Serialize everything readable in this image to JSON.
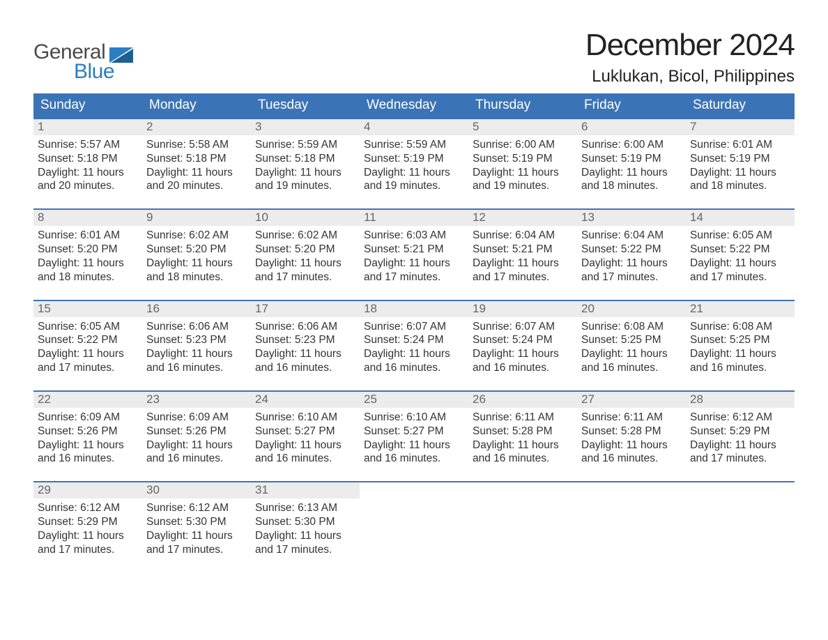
{
  "logo": {
    "line1": "General",
    "line2": "Blue"
  },
  "title": "December 2024",
  "location": "Luklukan, Bicol, Philippines",
  "colors": {
    "header_blue": "#3b74b6",
    "daynum_bg": "#ececec",
    "daynum_color": "#666666",
    "body_text": "#333333",
    "background": "#ffffff",
    "logo_gray": "#4a4a4a",
    "logo_blue": "#2a7ec2"
  },
  "typography": {
    "title_fontsize": 44,
    "location_fontsize": 24,
    "dow_fontsize": 19,
    "daynum_fontsize": 17,
    "body_fontsize": 15.5
  },
  "calendar": {
    "type": "table",
    "day_names": [
      "Sunday",
      "Monday",
      "Tuesday",
      "Wednesday",
      "Thursday",
      "Friday",
      "Saturday"
    ],
    "labels": {
      "sunrise": "Sunrise:",
      "sunset": "Sunset:",
      "daylight": "Daylight:"
    },
    "weeks": [
      [
        {
          "n": "1",
          "sunrise": "5:57 AM",
          "sunset": "5:18 PM",
          "daylight": "11 hours and 20 minutes."
        },
        {
          "n": "2",
          "sunrise": "5:58 AM",
          "sunset": "5:18 PM",
          "daylight": "11 hours and 20 minutes."
        },
        {
          "n": "3",
          "sunrise": "5:59 AM",
          "sunset": "5:18 PM",
          "daylight": "11 hours and 19 minutes."
        },
        {
          "n": "4",
          "sunrise": "5:59 AM",
          "sunset": "5:19 PM",
          "daylight": "11 hours and 19 minutes."
        },
        {
          "n": "5",
          "sunrise": "6:00 AM",
          "sunset": "5:19 PM",
          "daylight": "11 hours and 19 minutes."
        },
        {
          "n": "6",
          "sunrise": "6:00 AM",
          "sunset": "5:19 PM",
          "daylight": "11 hours and 18 minutes."
        },
        {
          "n": "7",
          "sunrise": "6:01 AM",
          "sunset": "5:19 PM",
          "daylight": "11 hours and 18 minutes."
        }
      ],
      [
        {
          "n": "8",
          "sunrise": "6:01 AM",
          "sunset": "5:20 PM",
          "daylight": "11 hours and 18 minutes."
        },
        {
          "n": "9",
          "sunrise": "6:02 AM",
          "sunset": "5:20 PM",
          "daylight": "11 hours and 18 minutes."
        },
        {
          "n": "10",
          "sunrise": "6:02 AM",
          "sunset": "5:20 PM",
          "daylight": "11 hours and 17 minutes."
        },
        {
          "n": "11",
          "sunrise": "6:03 AM",
          "sunset": "5:21 PM",
          "daylight": "11 hours and 17 minutes."
        },
        {
          "n": "12",
          "sunrise": "6:04 AM",
          "sunset": "5:21 PM",
          "daylight": "11 hours and 17 minutes."
        },
        {
          "n": "13",
          "sunrise": "6:04 AM",
          "sunset": "5:22 PM",
          "daylight": "11 hours and 17 minutes."
        },
        {
          "n": "14",
          "sunrise": "6:05 AM",
          "sunset": "5:22 PM",
          "daylight": "11 hours and 17 minutes."
        }
      ],
      [
        {
          "n": "15",
          "sunrise": "6:05 AM",
          "sunset": "5:22 PM",
          "daylight": "11 hours and 17 minutes."
        },
        {
          "n": "16",
          "sunrise": "6:06 AM",
          "sunset": "5:23 PM",
          "daylight": "11 hours and 16 minutes."
        },
        {
          "n": "17",
          "sunrise": "6:06 AM",
          "sunset": "5:23 PM",
          "daylight": "11 hours and 16 minutes."
        },
        {
          "n": "18",
          "sunrise": "6:07 AM",
          "sunset": "5:24 PM",
          "daylight": "11 hours and 16 minutes."
        },
        {
          "n": "19",
          "sunrise": "6:07 AM",
          "sunset": "5:24 PM",
          "daylight": "11 hours and 16 minutes."
        },
        {
          "n": "20",
          "sunrise": "6:08 AM",
          "sunset": "5:25 PM",
          "daylight": "11 hours and 16 minutes."
        },
        {
          "n": "21",
          "sunrise": "6:08 AM",
          "sunset": "5:25 PM",
          "daylight": "11 hours and 16 minutes."
        }
      ],
      [
        {
          "n": "22",
          "sunrise": "6:09 AM",
          "sunset": "5:26 PM",
          "daylight": "11 hours and 16 minutes."
        },
        {
          "n": "23",
          "sunrise": "6:09 AM",
          "sunset": "5:26 PM",
          "daylight": "11 hours and 16 minutes."
        },
        {
          "n": "24",
          "sunrise": "6:10 AM",
          "sunset": "5:27 PM",
          "daylight": "11 hours and 16 minutes."
        },
        {
          "n": "25",
          "sunrise": "6:10 AM",
          "sunset": "5:27 PM",
          "daylight": "11 hours and 16 minutes."
        },
        {
          "n": "26",
          "sunrise": "6:11 AM",
          "sunset": "5:28 PM",
          "daylight": "11 hours and 16 minutes."
        },
        {
          "n": "27",
          "sunrise": "6:11 AM",
          "sunset": "5:28 PM",
          "daylight": "11 hours and 16 minutes."
        },
        {
          "n": "28",
          "sunrise": "6:12 AM",
          "sunset": "5:29 PM",
          "daylight": "11 hours and 17 minutes."
        }
      ],
      [
        {
          "n": "29",
          "sunrise": "6:12 AM",
          "sunset": "5:29 PM",
          "daylight": "11 hours and 17 minutes."
        },
        {
          "n": "30",
          "sunrise": "6:12 AM",
          "sunset": "5:30 PM",
          "daylight": "11 hours and 17 minutes."
        },
        {
          "n": "31",
          "sunrise": "6:13 AM",
          "sunset": "5:30 PM",
          "daylight": "11 hours and 17 minutes."
        },
        null,
        null,
        null,
        null
      ]
    ]
  }
}
